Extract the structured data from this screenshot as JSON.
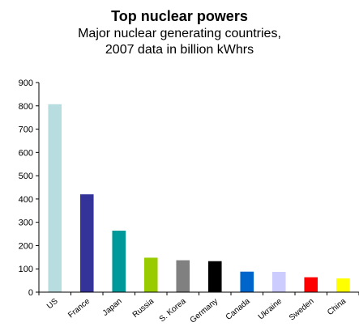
{
  "chart_data": {
    "type": "bar",
    "title": "Top nuclear powers",
    "subtitle": "Major nuclear generating countries,\n2007 data in billion kWhrs",
    "xlabel": "",
    "ylabel": "",
    "ylim": [
      0,
      900
    ],
    "yticks": [
      0,
      100,
      200,
      300,
      400,
      500,
      600,
      700,
      800,
      900
    ],
    "categories": [
      "US",
      "France",
      "Japan",
      "Russia",
      "S. Korea",
      "Germany",
      "Canada",
      "Ukraine",
      "Sweden",
      "China"
    ],
    "values": [
      807,
      420,
      264,
      148,
      137,
      133,
      88,
      87,
      64,
      59
    ],
    "colors": [
      "#b7dde0",
      "#333399",
      "#009999",
      "#99cc00",
      "#808080",
      "#000000",
      "#0066cc",
      "#ccccff",
      "#ff0000",
      "#ffff00"
    ],
    "grid": false,
    "legend": "none"
  }
}
